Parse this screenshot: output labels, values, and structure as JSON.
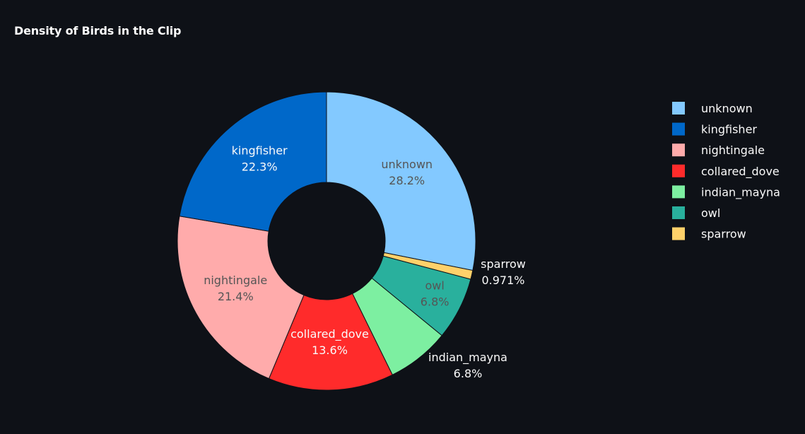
{
  "chart_data": {
    "type": "pie",
    "hole": true,
    "title": "Density of Birds in the Clip",
    "legend_position": "right",
    "slices": [
      {
        "label": "unknown",
        "percent_text": "28.2%",
        "value": 28.155,
        "color": "#83c9ff",
        "text_color": "#555555"
      },
      {
        "label": "sparrow",
        "percent_text": "0.971%",
        "value": 0.971,
        "color": "#ffd16a",
        "text_color": "#fafafa"
      },
      {
        "label": "owl",
        "percent_text": "6.8%",
        "value": 6.796,
        "color": "#29b09d",
        "text_color": "#555555"
      },
      {
        "label": "indian_mayna",
        "percent_text": "6.8%",
        "value": 6.796,
        "color": "#7defa1",
        "text_color": "#fafafa"
      },
      {
        "label": "collared_dove",
        "percent_text": "13.6%",
        "value": 13.592,
        "color": "#ff2b2b",
        "text_color": "#fafafa"
      },
      {
        "label": "nightingale",
        "percent_text": "21.4%",
        "value": 21.359,
        "color": "#ffabab",
        "text_color": "#555555"
      },
      {
        "label": "kingfisher",
        "percent_text": "22.3%",
        "value": 22.33,
        "color": "#0068c9",
        "text_color": "#fafafa"
      }
    ],
    "legend_order": [
      "unknown",
      "kingfisher",
      "nightingale",
      "collared_dove",
      "indian_mayna",
      "owl",
      "sparrow"
    ]
  }
}
